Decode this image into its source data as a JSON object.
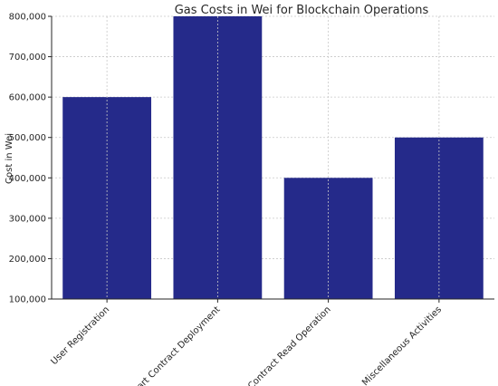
{
  "chart_data": {
    "type": "bar",
    "title": "Gas Costs in Wei for Blockchain Operations",
    "xlabel": "",
    "ylabel": "Cost in Wei",
    "categories": [
      "User Registration",
      "Smart Contract Deployment",
      "Contract Read Operation",
      "Miscellaneous Activities"
    ],
    "values": [
      600000,
      800000,
      400000,
      500000
    ],
    "ylim": [
      100000,
      800000
    ],
    "yticks": [
      100000,
      200000,
      300000,
      400000,
      500000,
      600000,
      700000,
      800000
    ],
    "ytick_labels": [
      "100,000",
      "200,000",
      "300,000",
      "400,000",
      "500,000",
      "600,000",
      "700,000",
      "800,000"
    ],
    "grid": true,
    "bar_color": "#252a8a",
    "grid_color": "#c8c8c8"
  }
}
